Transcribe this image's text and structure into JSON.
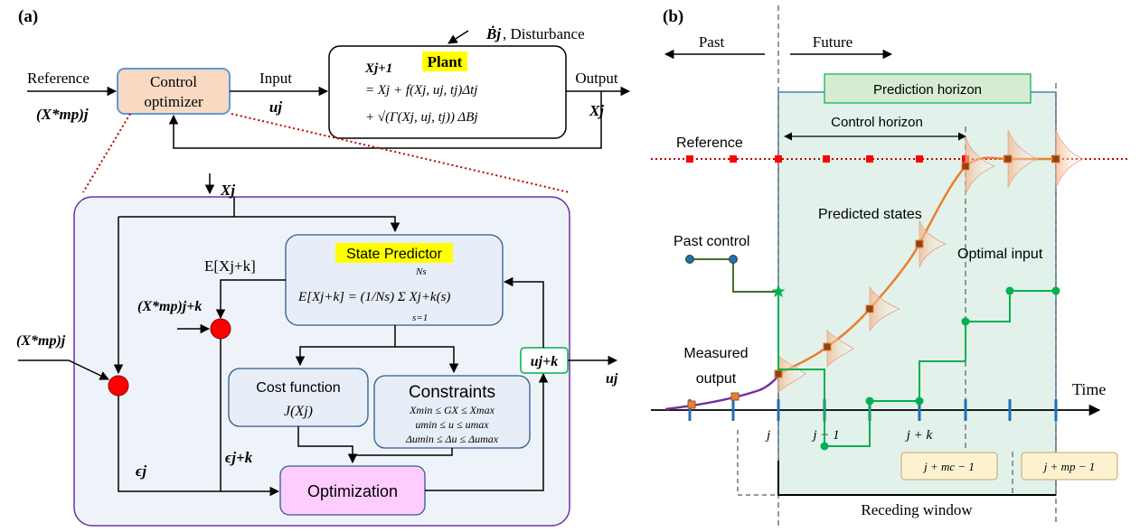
{
  "panel_a": {
    "label": "(a)",
    "reference_label": "Reference",
    "reference_symbol": "(X*mp)j",
    "control_optimizer_label_1": "Control",
    "control_optimizer_label_2": "optimizer",
    "input_label": "Input",
    "input_symbol": "uj",
    "disturbance_symbol": "Ḃj",
    "disturbance_label": ", Disturbance",
    "plant_title": "Plant",
    "plant_eq_1": "Xj+1",
    "plant_eq_2": "= Xj + f(Xj, uj, tj)Δtj",
    "plant_eq_3": "+ √(Γ(Xj, uj, tj)) ΔBj",
    "output_label": "Output",
    "output_symbol": "Xj",
    "inner": {
      "xj_in": "Xj",
      "expectation_label": "E[Xj+k]",
      "ref_k_symbol": "(X*mp)j+k",
      "ref_j_symbol": "(X*mp)j",
      "state_predictor_title": "State Predictor",
      "state_predictor_eq": "E[Xj+k] = (1/Ns) Σ Xj+k(s)",
      "sum_top": "Ns",
      "sum_bottom": "s=1",
      "cost_title": "Cost function",
      "cost_eq": "J(Xj)",
      "constraints_title": "Constraints",
      "constraint_1": "Xmin ≤ GX ≤ Xmax",
      "constraint_2": "umin ≤ u ≤ umax",
      "constraint_3": "Δumin ≤ Δu ≤ Δumax",
      "u_jk_label": "uj+k",
      "u_j_out": "uj",
      "eps_j": "ϵj",
      "eps_jk": "ϵj+k",
      "optimization_label": "Optimization"
    },
    "colors": {
      "optimizer_fill": "#f9d9c2",
      "optimizer_stroke": "#5b9bd5",
      "panel_fill": "#eef3fa",
      "panel_stroke": "#7030a0",
      "box_fill": "#e8eef8",
      "box_stroke": "#2e5c8a",
      "optimization_fill": "#ffccff",
      "highlight": "#ffff00",
      "sum_node": "#ff0000",
      "dotted_red": "#c00000",
      "u_box_stroke": "#00b050"
    }
  },
  "panel_b": {
    "label": "(b)",
    "past_label": "Past",
    "future_label": "Future",
    "prediction_horizon_label": "Prediction horizon",
    "control_horizon_label": "Control horizon",
    "reference_label": "Reference",
    "predicted_states_label": "Predicted states",
    "past_control_label": "Past control",
    "optimal_input_label": "Optimal input",
    "measured_output_label_1": "Measured",
    "measured_output_label_2": "output",
    "time_label": "Time",
    "tick_j": "j",
    "tick_j1": "j − 1",
    "tick_jk": "j + k",
    "tick_mc": "j + mc − 1",
    "tick_mp": "j + mp − 1",
    "receding_window_label": "Receding window",
    "colors": {
      "region_fill": "#e2f2ea",
      "region_stroke": "#4f81bd",
      "prediction_box_fill": "#d6ecd2",
      "prediction_box_stroke": "#00b050",
      "reference": "#ff0000",
      "predicted": "#ed7d31",
      "past_control": "#1f6fb4",
      "optimal_input": "#00b050",
      "measured": "#7030a0",
      "tick": "#1f6fb4",
      "tick_box_fill": "#fdf2d0"
    }
  }
}
